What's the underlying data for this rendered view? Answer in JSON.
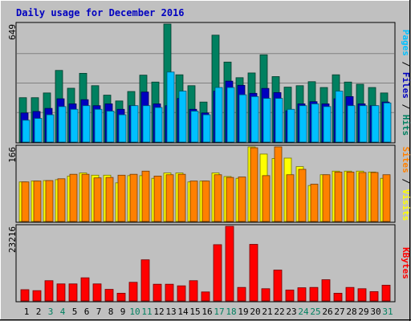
{
  "chart_data": [
    {
      "type": "bar",
      "title": "Daily usage for December 2016",
      "y_max_label": "649",
      "ylim": [
        0,
        649
      ],
      "right_label_parts": [
        {
          "text": "Pages",
          "color": "#00c0ff"
        },
        {
          "text": " / ",
          "color": "#000000"
        },
        {
          "text": "Files",
          "color": "#0000c0"
        },
        {
          "text": " / ",
          "color": "#000000"
        },
        {
          "text": "Hits",
          "color": "#008060"
        }
      ],
      "categories": [
        "1",
        "2",
        "3",
        "4",
        "5",
        "6",
        "7",
        "8",
        "9",
        "10",
        "11",
        "12",
        "13",
        "14",
        "15",
        "16",
        "17",
        "18",
        "19",
        "20",
        "21",
        "22",
        "23",
        "24",
        "25",
        "26",
        "27",
        "28",
        "29",
        "30",
        "31"
      ],
      "series": [
        {
          "name": "Hits",
          "color": "#008060",
          "values": [
            244,
            244,
            270,
            394,
            296,
            378,
            310,
            258,
            226,
            278,
            368,
            330,
            649,
            370,
            310,
            220,
            588,
            440,
            354,
            380,
            480,
            360,
            302,
            310,
            332,
            300,
            370,
            330,
            318,
            300,
            270
          ]
        },
        {
          "name": "Files",
          "color": "#0000c0",
          "values": [
            160,
            168,
            185,
            238,
            210,
            233,
            200,
            210,
            180,
            200,
            275,
            210,
            200,
            240,
            180,
            160,
            280,
            335,
            312,
            268,
            295,
            272,
            172,
            210,
            222,
            210,
            238,
            250,
            210,
            200,
            220
          ]
        },
        {
          "name": "Pages",
          "color": "#00c0ff",
          "values": [
            120,
            130,
            150,
            195,
            180,
            200,
            180,
            170,
            150,
            200,
            200,
            190,
            385,
            280,
            170,
            150,
            300,
            300,
            260,
            250,
            240,
            240,
            180,
            200,
            210,
            195,
            280,
            200,
            200,
            200,
            215
          ]
        }
      ]
    },
    {
      "type": "bar",
      "y_max_label": "166",
      "ylim": [
        0,
        166
      ],
      "right_label_parts": [
        {
          "text": "Sites",
          "color": "#ff8000"
        },
        {
          "text": " / ",
          "color": "#000000"
        },
        {
          "text": "Visits",
          "color": "#ffff00"
        }
      ],
      "categories": [
        "1",
        "2",
        "3",
        "4",
        "5",
        "6",
        "7",
        "8",
        "9",
        "10",
        "11",
        "12",
        "13",
        "14",
        "15",
        "16",
        "17",
        "18",
        "19",
        "20",
        "21",
        "22",
        "23",
        "24",
        "25",
        "26",
        "27",
        "28",
        "29",
        "30",
        "31"
      ],
      "series": [
        {
          "name": "Visits",
          "color": "#ffff00",
          "values": [
            88,
            90,
            91,
            93,
            101,
            108,
            103,
            103,
            86,
            102,
            102,
            96,
            108,
            108,
            88,
            90,
            108,
            100,
            96,
            166,
            150,
            140,
            141,
            122,
            80,
            104,
            112,
            112,
            112,
            110,
            96
          ]
        },
        {
          "name": "Sites",
          "color": "#ff8000",
          "values": [
            88,
            90,
            91,
            95,
            105,
            105,
            97,
            98,
            103,
            105,
            112,
            101,
            104,
            105,
            90,
            90,
            104,
            98,
            99,
            164,
            102,
            166,
            104,
            116,
            83,
            104,
            110,
            110,
            109,
            109,
            104
          ]
        }
      ]
    },
    {
      "type": "bar",
      "y_max_label": "23216",
      "ylim": [
        0,
        23216
      ],
      "right_label_parts": [
        {
          "text": "KBytes",
          "color": "#ff0000"
        }
      ],
      "categories": [
        "1",
        "2",
        "3",
        "4",
        "5",
        "6",
        "7",
        "8",
        "9",
        "10",
        "11",
        "12",
        "13",
        "14",
        "15",
        "16",
        "17",
        "18",
        "19",
        "20",
        "21",
        "22",
        "23",
        "24",
        "25",
        "26",
        "27",
        "28",
        "29",
        "30",
        "31"
      ],
      "x_label_colors": [
        "#000000",
        "#000000",
        "#008060",
        "#008060",
        "#000000",
        "#000000",
        "#000000",
        "#000000",
        "#000000",
        "#008060",
        "#008060",
        "#000000",
        "#000000",
        "#000000",
        "#000000",
        "#000000",
        "#008060",
        "#008060",
        "#000000",
        "#000000",
        "#000000",
        "#000000",
        "#000000",
        "#008060",
        "#008060",
        "#000000",
        "#000000",
        "#000000",
        "#000000",
        "#000000",
        "#008060"
      ],
      "series": [
        {
          "name": "KBytes",
          "color": "#ff0000",
          "values": [
            3500,
            3200,
            6300,
            5300,
            5300,
            7200,
            5300,
            3600,
            2400,
            5800,
            12800,
            5200,
            5200,
            4700,
            6300,
            2800,
            17500,
            23216,
            4200,
            17600,
            3800,
            9600,
            3400,
            4100,
            4200,
            6600,
            2400,
            4200,
            3800,
            2900,
            4900
          ]
        }
      ]
    }
  ]
}
